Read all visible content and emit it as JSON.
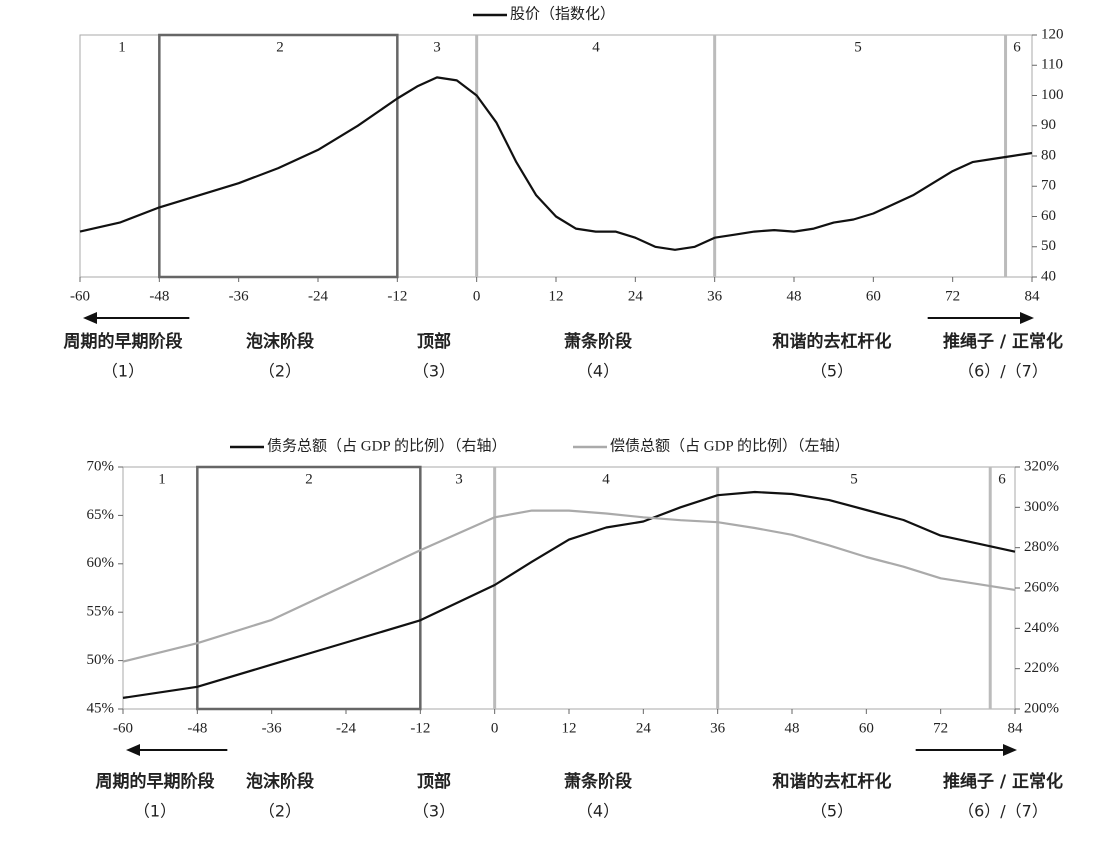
{
  "chart_data": [
    {
      "type": "line",
      "x": [
        -60,
        -54,
        -48,
        -42,
        -36,
        -30,
        -24,
        -18,
        -12,
        -9,
        -6,
        -3,
        0,
        3,
        6,
        9,
        12,
        15,
        18,
        21,
        24,
        27,
        30,
        33,
        36,
        39,
        42,
        45,
        48,
        51,
        54,
        57,
        60,
        63,
        66,
        69,
        72,
        75,
        78,
        81,
        84
      ],
      "series": [
        {
          "name": "股价（指数化）",
          "color": "#111111",
          "values": [
            55,
            58,
            63,
            67,
            71,
            76,
            82,
            90,
            99,
            103,
            106,
            105,
            100,
            91,
            78,
            67,
            60,
            56,
            55,
            55,
            53,
            50,
            49,
            50,
            53,
            54,
            55,
            55.5,
            55,
            56,
            58,
            59,
            61,
            64,
            67,
            71,
            75,
            78,
            79,
            80,
            81
          ]
        }
      ],
      "xlim": [
        -60,
        84
      ],
      "xticks": [
        -60,
        -48,
        -36,
        -24,
        -12,
        0,
        12,
        24,
        36,
        48,
        60,
        72,
        84
      ],
      "ylim": [
        40,
        120
      ],
      "yticks": [
        40,
        50,
        60,
        70,
        80,
        90,
        100,
        110,
        120
      ],
      "y_axis_side": "right",
      "highlight": [
        -48,
        -12
      ],
      "vlines": [
        0,
        36,
        80
      ],
      "stage_numbers": [
        "1",
        "2",
        "3",
        "4",
        "5",
        "6"
      ],
      "stages": [
        {
          "name": "周期的早期阶段",
          "num": "（1）"
        },
        {
          "name": "泡沫阶段",
          "num": "（2）"
        },
        {
          "name": "顶部",
          "num": "（3）"
        },
        {
          "name": "萧条阶段",
          "num": "（4）"
        },
        {
          "name": "和谐的去杠杆化",
          "num": "（5）"
        },
        {
          "name": "推绳子 / 正常化",
          "num": "（6）/（7）"
        }
      ]
    },
    {
      "type": "line",
      "x": [
        -60,
        -48,
        -36,
        -24,
        -12,
        0,
        6,
        12,
        18,
        24,
        30,
        36,
        42,
        48,
        54,
        60,
        66,
        72,
        78,
        84
      ],
      "series": [
        {
          "name": "债务总额（占 GDP 的比例）（右轴）",
          "color": "#111111",
          "axis": "y2",
          "values": [
            205.5,
            211,
            222,
            233,
            244,
            261.5,
            273,
            284,
            290,
            293,
            300,
            306,
            307.6,
            306.6,
            303.6,
            298.7,
            293.7,
            286,
            282,
            278
          ]
        },
        {
          "name": "偿债总额（占 GDP 的比例）（左轴）",
          "color": "#aaaaaa",
          "values": [
            49.9,
            51.8,
            54.2,
            57.8,
            61.4,
            64.8,
            65.5,
            65.5,
            65.2,
            64.8,
            64.5,
            64.3,
            63.7,
            63,
            61.9,
            60.7,
            59.7,
            58.5,
            57.9,
            57.3
          ]
        }
      ],
      "xlim": [
        -60,
        84
      ],
      "xticks": [
        -60,
        -48,
        -36,
        -24,
        -12,
        0,
        12,
        24,
        36,
        48,
        60,
        72,
        84
      ],
      "ylim": [
        45,
        70
      ],
      "yticks": [
        {
          "value": 45,
          "label": "45%"
        },
        {
          "value": 50,
          "label": "50%"
        },
        {
          "value": 55,
          "label": "55%"
        },
        {
          "value": 60,
          "label": "60%"
        },
        {
          "value": 65,
          "label": "65%"
        },
        {
          "value": 70,
          "label": "70%"
        }
      ],
      "y2lim": [
        200,
        320
      ],
      "y2ticks": [
        {
          "value": 200,
          "label": "200%"
        },
        {
          "value": 220,
          "label": "220%"
        },
        {
          "value": 240,
          "label": "240%"
        },
        {
          "value": 260,
          "label": "260%"
        },
        {
          "value": 280,
          "label": "280%"
        },
        {
          "value": 300,
          "label": "300%"
        },
        {
          "value": 320,
          "label": "320%"
        }
      ],
      "highlight": [
        -48,
        -12
      ],
      "vlines": [
        0,
        36,
        80
      ],
      "stage_numbers": [
        "1",
        "2",
        "3",
        "4",
        "5",
        "6"
      ],
      "stages": [
        {
          "name": "周期的早期阶段",
          "num": "（1）"
        },
        {
          "name": "泡沫阶段",
          "num": "（2）"
        },
        {
          "name": "顶部",
          "num": "（3）"
        },
        {
          "name": "萧条阶段",
          "num": "（4）"
        },
        {
          "name": "和谐的去杠杆化",
          "num": "（5）"
        },
        {
          "name": "推绳子 / 正常化",
          "num": "（6）/（7）"
        }
      ]
    }
  ]
}
